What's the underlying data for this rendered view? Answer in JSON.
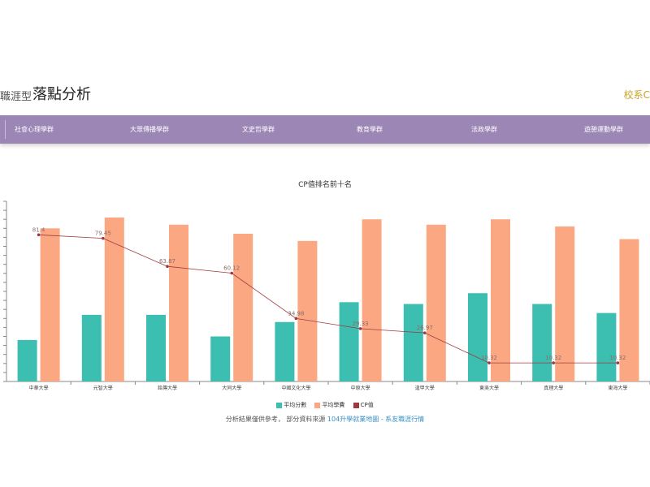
{
  "header": {
    "title_prefix": "職涯型",
    "title_main": "落點分析",
    "school_link": "校系C"
  },
  "tabs": [
    {
      "label": "社會心理學群"
    },
    {
      "label": "大眾傳播學群"
    },
    {
      "label": "文史哲學群"
    },
    {
      "label": "教育學群"
    },
    {
      "label": "法政學群"
    },
    {
      "label": "遊憩運動學群"
    }
  ],
  "chart_data": {
    "type": "bar",
    "title": "CP值排名前十名",
    "categories": [
      "中華大學",
      "元智大學",
      "銘傳大學",
      "大同大學",
      "中國文化大學",
      "中原大學",
      "逢甲大學",
      "東吳大學",
      "真理大學",
      "東海大學"
    ],
    "series": [
      {
        "name": "平均分數",
        "type": "bar",
        "color": "#3cbfb0",
        "values": [
          23,
          37,
          37,
          25,
          33,
          44,
          43,
          49,
          43,
          38
        ]
      },
      {
        "name": "平均學費",
        "type": "bar",
        "color": "#fba882",
        "values": [
          85,
          91,
          87,
          82,
          78,
          90,
          87,
          90,
          86,
          79
        ]
      },
      {
        "name": "CP值",
        "type": "line",
        "color": "#a0393f",
        "values": [
          81.4,
          79.45,
          63.87,
          60.12,
          34.98,
          29.33,
          26.97,
          10.32,
          10.32,
          10.32
        ]
      }
    ],
    "data_labels": [
      "81.4",
      "79.45",
      "63.87",
      "60.12",
      "34.98",
      "29.33",
      "26.97",
      "10.32",
      "10.32",
      "10.32"
    ],
    "ylim": [
      0,
      100
    ],
    "grid": false,
    "legend_position": "bottom-center"
  },
  "footer": {
    "note_prefix": "分析結果僅供參考，  部分資料來源",
    "link_text": "104升學就業地圖 - 系友職涯行情"
  }
}
